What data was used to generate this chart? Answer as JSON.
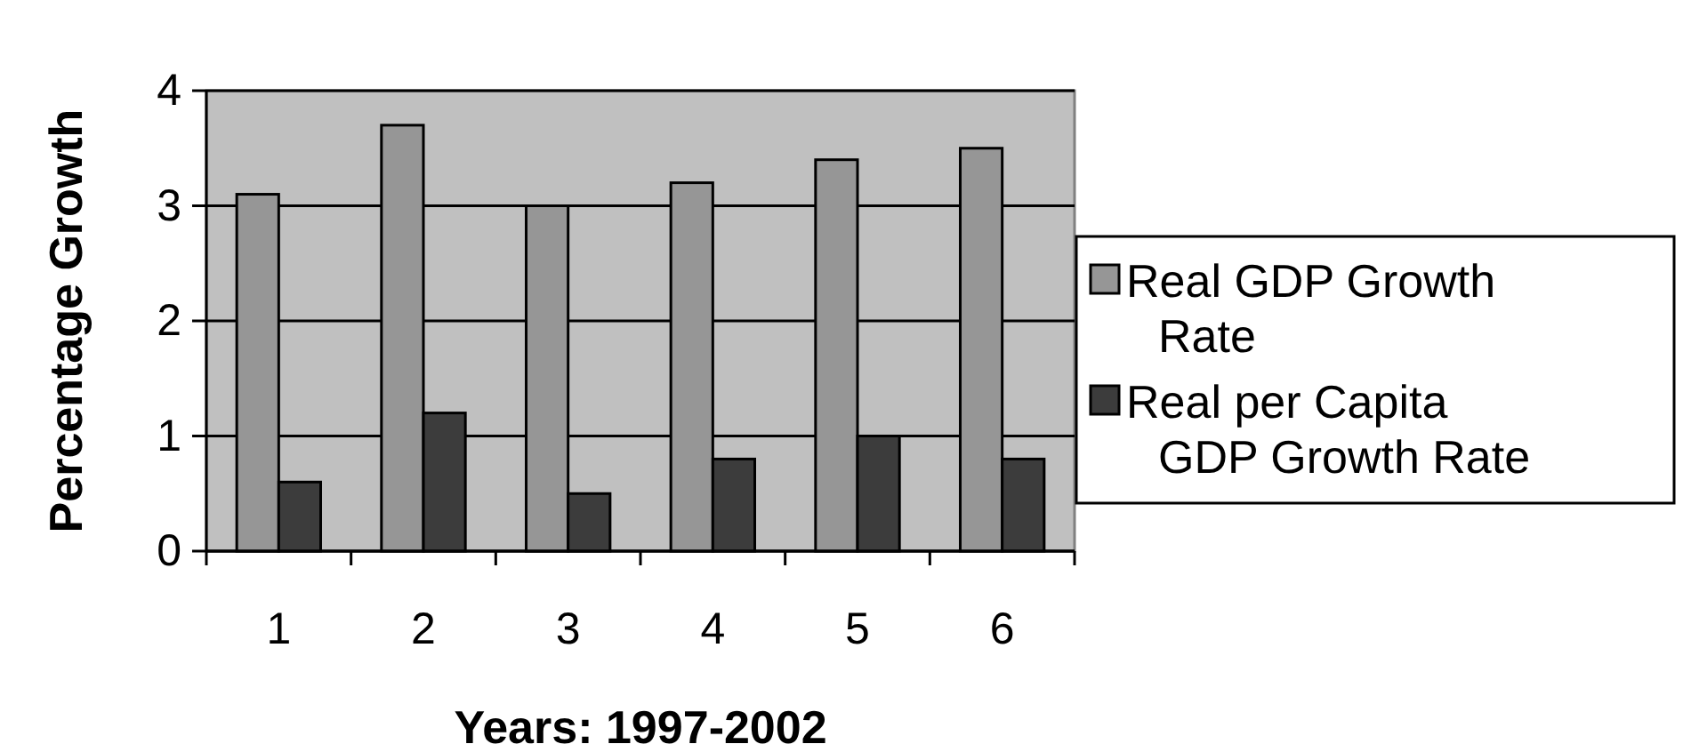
{
  "chart_data": {
    "type": "bar",
    "xlabel": "Years: 1997-2002",
    "ylabel": "Percentage Growth",
    "categories": [
      "1",
      "2",
      "3",
      "4",
      "5",
      "6"
    ],
    "series": [
      {
        "name": "Real GDP Growth Rate",
        "color": "#969696",
        "values": [
          3.1,
          3.7,
          3.0,
          3.2,
          3.4,
          3.5
        ]
      },
      {
        "name": "Real per Capita GDP Growth Rate",
        "color": "#3c3c3c",
        "values": [
          0.6,
          1.2,
          0.5,
          0.8,
          1.0,
          0.8
        ]
      }
    ],
    "ylim": [
      0,
      4
    ],
    "yticks": [
      0,
      1,
      2,
      3,
      4
    ],
    "grid": "y",
    "legend": "right"
  }
}
